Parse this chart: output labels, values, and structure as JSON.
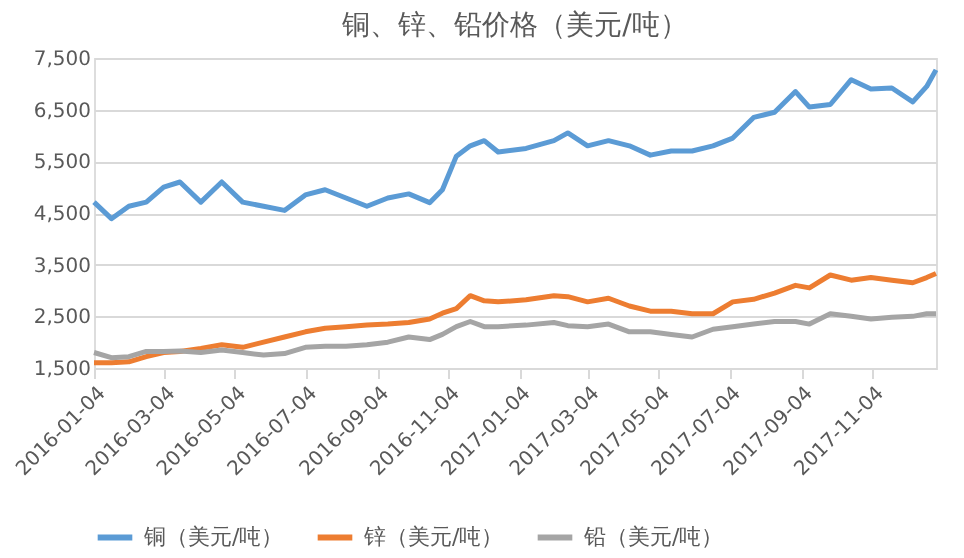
{
  "chart_data": {
    "type": "line",
    "title": "铜、锌、铅价格（美元/吨）",
    "x": [
      "2016-01-04",
      "2016-01-19",
      "2016-02-03",
      "2016-02-18",
      "2016-03-04",
      "2016-03-18",
      "2016-04-05",
      "2016-04-23",
      "2016-05-11",
      "2016-05-29",
      "2016-06-16",
      "2016-07-04",
      "2016-07-21",
      "2016-08-08",
      "2016-08-26",
      "2016-09-13",
      "2016-10-01",
      "2016-10-19",
      "2016-10-30",
      "2016-11-11",
      "2016-11-23",
      "2016-12-05",
      "2016-12-17",
      "2017-01-10",
      "2017-02-03",
      "2017-02-15",
      "2017-03-04",
      "2017-03-22",
      "2017-04-09",
      "2017-04-27",
      "2017-05-15",
      "2017-06-02",
      "2017-06-20",
      "2017-07-07",
      "2017-07-25",
      "2017-08-12",
      "2017-08-30",
      "2017-09-11",
      "2017-09-29",
      "2017-10-17",
      "2017-11-03",
      "2017-11-21",
      "2017-12-09",
      "2017-12-21",
      "2017-12-29"
    ],
    "series": [
      {
        "name": "铜（美元/吨）",
        "color": "#5b9bd5",
        "values": [
          4710,
          4390,
          4630,
          4710,
          5000,
          5100,
          4710,
          5100,
          4710,
          4630,
          4550,
          4850,
          4950,
          4790,
          4630,
          4790,
          4870,
          4700,
          4950,
          5600,
          5800,
          5900,
          5680,
          5750,
          5900,
          6050,
          5800,
          5900,
          5800,
          5620,
          5700,
          5700,
          5800,
          5950,
          6350,
          6450,
          6850,
          6550,
          6600,
          7080,
          6900,
          6920,
          6650,
          6950,
          7270
        ]
      },
      {
        "name": "锌（美元/吨）",
        "color": "#ed7d31",
        "values": [
          1600,
          1600,
          1620,
          1720,
          1800,
          1820,
          1880,
          1950,
          1900,
          2000,
          2100,
          2200,
          2270,
          2300,
          2330,
          2350,
          2380,
          2450,
          2560,
          2650,
          2900,
          2800,
          2780,
          2820,
          2900,
          2880,
          2780,
          2850,
          2700,
          2600,
          2600,
          2550,
          2550,
          2780,
          2830,
          2950,
          3100,
          3050,
          3300,
          3200,
          3250,
          3200,
          3150,
          3250,
          3330
        ]
      },
      {
        "name": "铅（美元/吨）",
        "color": "#a5a5a5",
        "values": [
          1800,
          1700,
          1720,
          1820,
          1820,
          1830,
          1800,
          1850,
          1800,
          1750,
          1780,
          1900,
          1920,
          1920,
          1950,
          2000,
          2100,
          2050,
          2150,
          2300,
          2400,
          2300,
          2300,
          2330,
          2380,
          2320,
          2300,
          2350,
          2200,
          2200,
          2150,
          2100,
          2250,
          2300,
          2350,
          2400,
          2400,
          2350,
          2550,
          2500,
          2450,
          2480,
          2500,
          2550,
          2550
        ]
      }
    ],
    "xlim": [
      "2016-01-04",
      "2017-12-29"
    ],
    "xticks": [
      "2016-01-04",
      "2016-03-04",
      "2016-05-04",
      "2016-07-04",
      "2016-09-04",
      "2016-11-04",
      "2017-01-04",
      "2017-03-04",
      "2017-05-04",
      "2017-07-04",
      "2017-09-04",
      "2017-11-04"
    ],
    "ylim": [
      1500,
      7500
    ],
    "yticks": [
      {
        "value": 1500,
        "label": "1,500"
      },
      {
        "value": 2500,
        "label": "2,500"
      },
      {
        "value": 3500,
        "label": "3,500"
      },
      {
        "value": 4500,
        "label": "4,500"
      },
      {
        "value": 5500,
        "label": "5,500"
      },
      {
        "value": 6500,
        "label": "6,500"
      },
      {
        "value": 7500,
        "label": "7,500"
      }
    ],
    "grid": "y",
    "legend": "bottom",
    "marker": "none",
    "line_style": "solid"
  }
}
